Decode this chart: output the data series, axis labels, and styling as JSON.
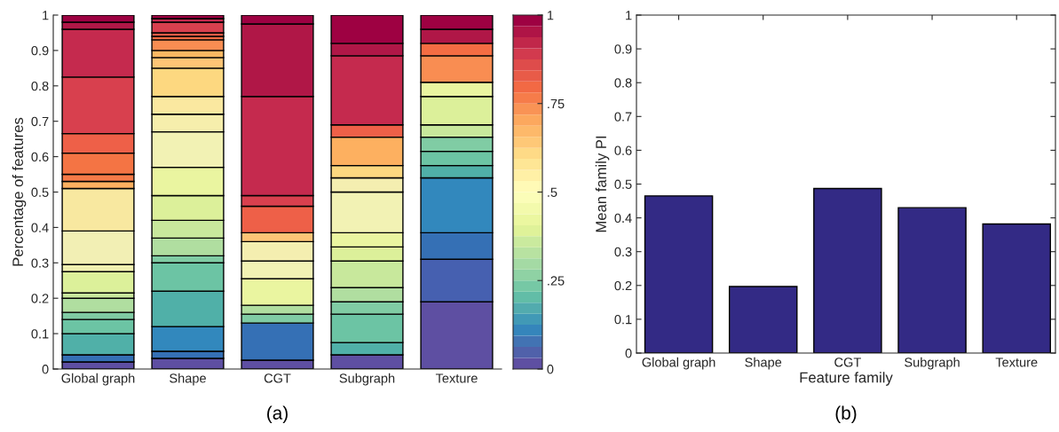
{
  "chart_data": [
    {
      "type": "bar",
      "stacked": true,
      "categories": [
        "Global graph",
        "Shape",
        "CGT",
        "Subgraph",
        "Texture"
      ],
      "ylabel": "Percentage of features",
      "ylim": [
        0,
        1
      ],
      "yticks": [
        0,
        0.1,
        0.2,
        0.3,
        0.4,
        0.5,
        0.6,
        0.7,
        0.8,
        0.9,
        1
      ],
      "clim": [
        0,
        1
      ],
      "cticks": [
        0,
        {
          "value": 0.25,
          "label": ".25"
        },
        {
          "value": 0.5,
          "label": ".5"
        },
        {
          "value": 0.75,
          "label": ".75"
        },
        1
      ],
      "annotations": [
        "(a)"
      ],
      "series": [
        {
          "values": [
            0.02,
            0.03,
            0.025,
            0.04,
            0.19
          ],
          "colors": [
            "#5e4fa2",
            "#5e4fa2",
            "#5e4fa2",
            "#5e4fa2",
            "#5e4fa2"
          ]
        },
        {
          "values": [
            0.02,
            0.02,
            0.105,
            0.035,
            0.12
          ],
          "colors": [
            "#3570b5",
            "#3570b5",
            "#3570b5",
            "#50b0a8",
            "#4660b0"
          ]
        },
        {
          "values": [
            0.06,
            0.07,
            0.025,
            0.08,
            0.075
          ],
          "colors": [
            "#50b0a8",
            "#3288bd",
            "#80cca4",
            "#6cc4a4",
            "#3570b5"
          ]
        },
        {
          "values": [
            0.04,
            0.1,
            0.025,
            0.035,
            0.155
          ],
          "colors": [
            "#6cc4a4",
            "#50b0a8",
            "#b0dea0",
            "#80cca4",
            "#3288bd"
          ]
        },
        {
          "values": [
            0.02,
            0.08,
            0.075,
            0.04,
            0.035
          ],
          "colors": [
            "#80cca4",
            "#6cc4a4",
            "#eaf5a0",
            "#b0dea0",
            "#50b0a8"
          ]
        },
        {
          "values": [
            0.04,
            0.02,
            0.05,
            0.075,
            0.04
          ],
          "colors": [
            "#b0dea0",
            "#80cca4",
            "#f2f2b4",
            "#c8e89c",
            "#6cc4a4"
          ]
        },
        {
          "values": [
            0.015,
            0.05,
            0.055,
            0.04,
            0.04
          ],
          "colors": [
            "#c8e89c",
            "#b0dea0",
            "#f4eeb0",
            "#dcf09a",
            "#80cca4"
          ]
        },
        {
          "values": [
            0.06,
            0.05,
            0.025,
            0.04,
            0.035
          ],
          "colors": [
            "#dcf09a",
            "#c8e89c",
            "#fdc476",
            "#eaf5a0",
            "#c8e89c"
          ]
        },
        {
          "values": [
            0.02,
            0.07,
            0.075,
            0.115,
            0.08
          ],
          "colors": [
            "#f0f0b0",
            "#dcf09a",
            "#ee6048",
            "#f2f2b4",
            "#dcf09a"
          ]
        },
        {
          "values": [
            0.095,
            0.08,
            0.03,
            0.04,
            0.04
          ],
          "colors": [
            "#f2efb4",
            "#eaf5a0",
            "#d8404e",
            "#f4eeb0",
            "#eaf5a0"
          ]
        },
        {
          "values": [
            0.12,
            0.1,
            0.28,
            0.035,
            0.075
          ],
          "colors": [
            "#f8e8a0",
            "#f2f2b4",
            "#c52a4e",
            "#fdd880",
            "#f98d52"
          ]
        },
        {
          "values": [
            0.02,
            0.05,
            0.205,
            0.08,
            0.035
          ],
          "colors": [
            "#fdb060",
            "#f6eeac",
            "#b01747",
            "#fdb060",
            "#f46d43"
          ]
        },
        {
          "values": [
            0.02,
            0.05,
            0.025,
            0.035,
            0.04
          ],
          "colors": [
            "#f67a48",
            "#fae8a0",
            "#9e0142",
            "#ee6048",
            "#b01747"
          ]
        },
        {
          "values": [
            0.06,
            0.08,
            null,
            0.195,
            0.04
          ],
          "colors": [
            "#f47444",
            "#fdd880",
            null,
            "#c52a4e",
            "#9e0142"
          ]
        },
        {
          "values": [
            0.055,
            0.03,
            null,
            0.035,
            null
          ],
          "colors": [
            "#ee6048",
            "#fdc476",
            null,
            "#b01747",
            null
          ]
        },
        {
          "values": [
            0.16,
            0.02,
            null,
            0.08,
            null
          ],
          "colors": [
            "#d8404e",
            "#fdb863",
            null,
            "#9e0142",
            null
          ]
        },
        {
          "values": [
            0.135,
            0.03,
            null,
            null,
            null
          ],
          "colors": [
            "#c52a4e",
            "#f98d52",
            null,
            null,
            null
          ]
        },
        {
          "values": [
            0.02,
            0.01,
            null,
            null,
            null
          ],
          "colors": [
            "#b01747",
            "#f46d43",
            null,
            null,
            null
          ]
        },
        {
          "values": [
            0.02,
            0.01,
            null,
            null,
            null
          ],
          "colors": [
            "#9e0142",
            "#e95c47",
            null,
            null,
            null
          ]
        },
        {
          "values": [
            null,
            0.03,
            null,
            null,
            null
          ],
          "colors": [
            null,
            "#d8404e",
            null,
            null,
            null
          ]
        },
        {
          "values": [
            null,
            0.01,
            null,
            null,
            null
          ],
          "colors": [
            null,
            "#c52a4e",
            null,
            null,
            null
          ]
        },
        {
          "values": [
            null,
            0.01,
            null,
            null,
            null
          ],
          "colors": [
            null,
            "#9e0142",
            null,
            null,
            null
          ]
        }
      ]
    },
    {
      "type": "bar",
      "categories": [
        "Global graph",
        "Shape",
        "CGT",
        "Subgraph",
        "Texture"
      ],
      "values": [
        0.465,
        0.197,
        0.487,
        0.43,
        0.382
      ],
      "color": "#332a85",
      "xlabel": "Feature family",
      "ylabel": "Mean family PI",
      "ylim": [
        0,
        1
      ],
      "yticks": [
        0,
        0.1,
        0.2,
        0.3,
        0.4,
        0.5,
        0.6,
        0.7,
        0.8,
        0.9,
        1
      ],
      "annotations": [
        "(b)"
      ]
    }
  ]
}
